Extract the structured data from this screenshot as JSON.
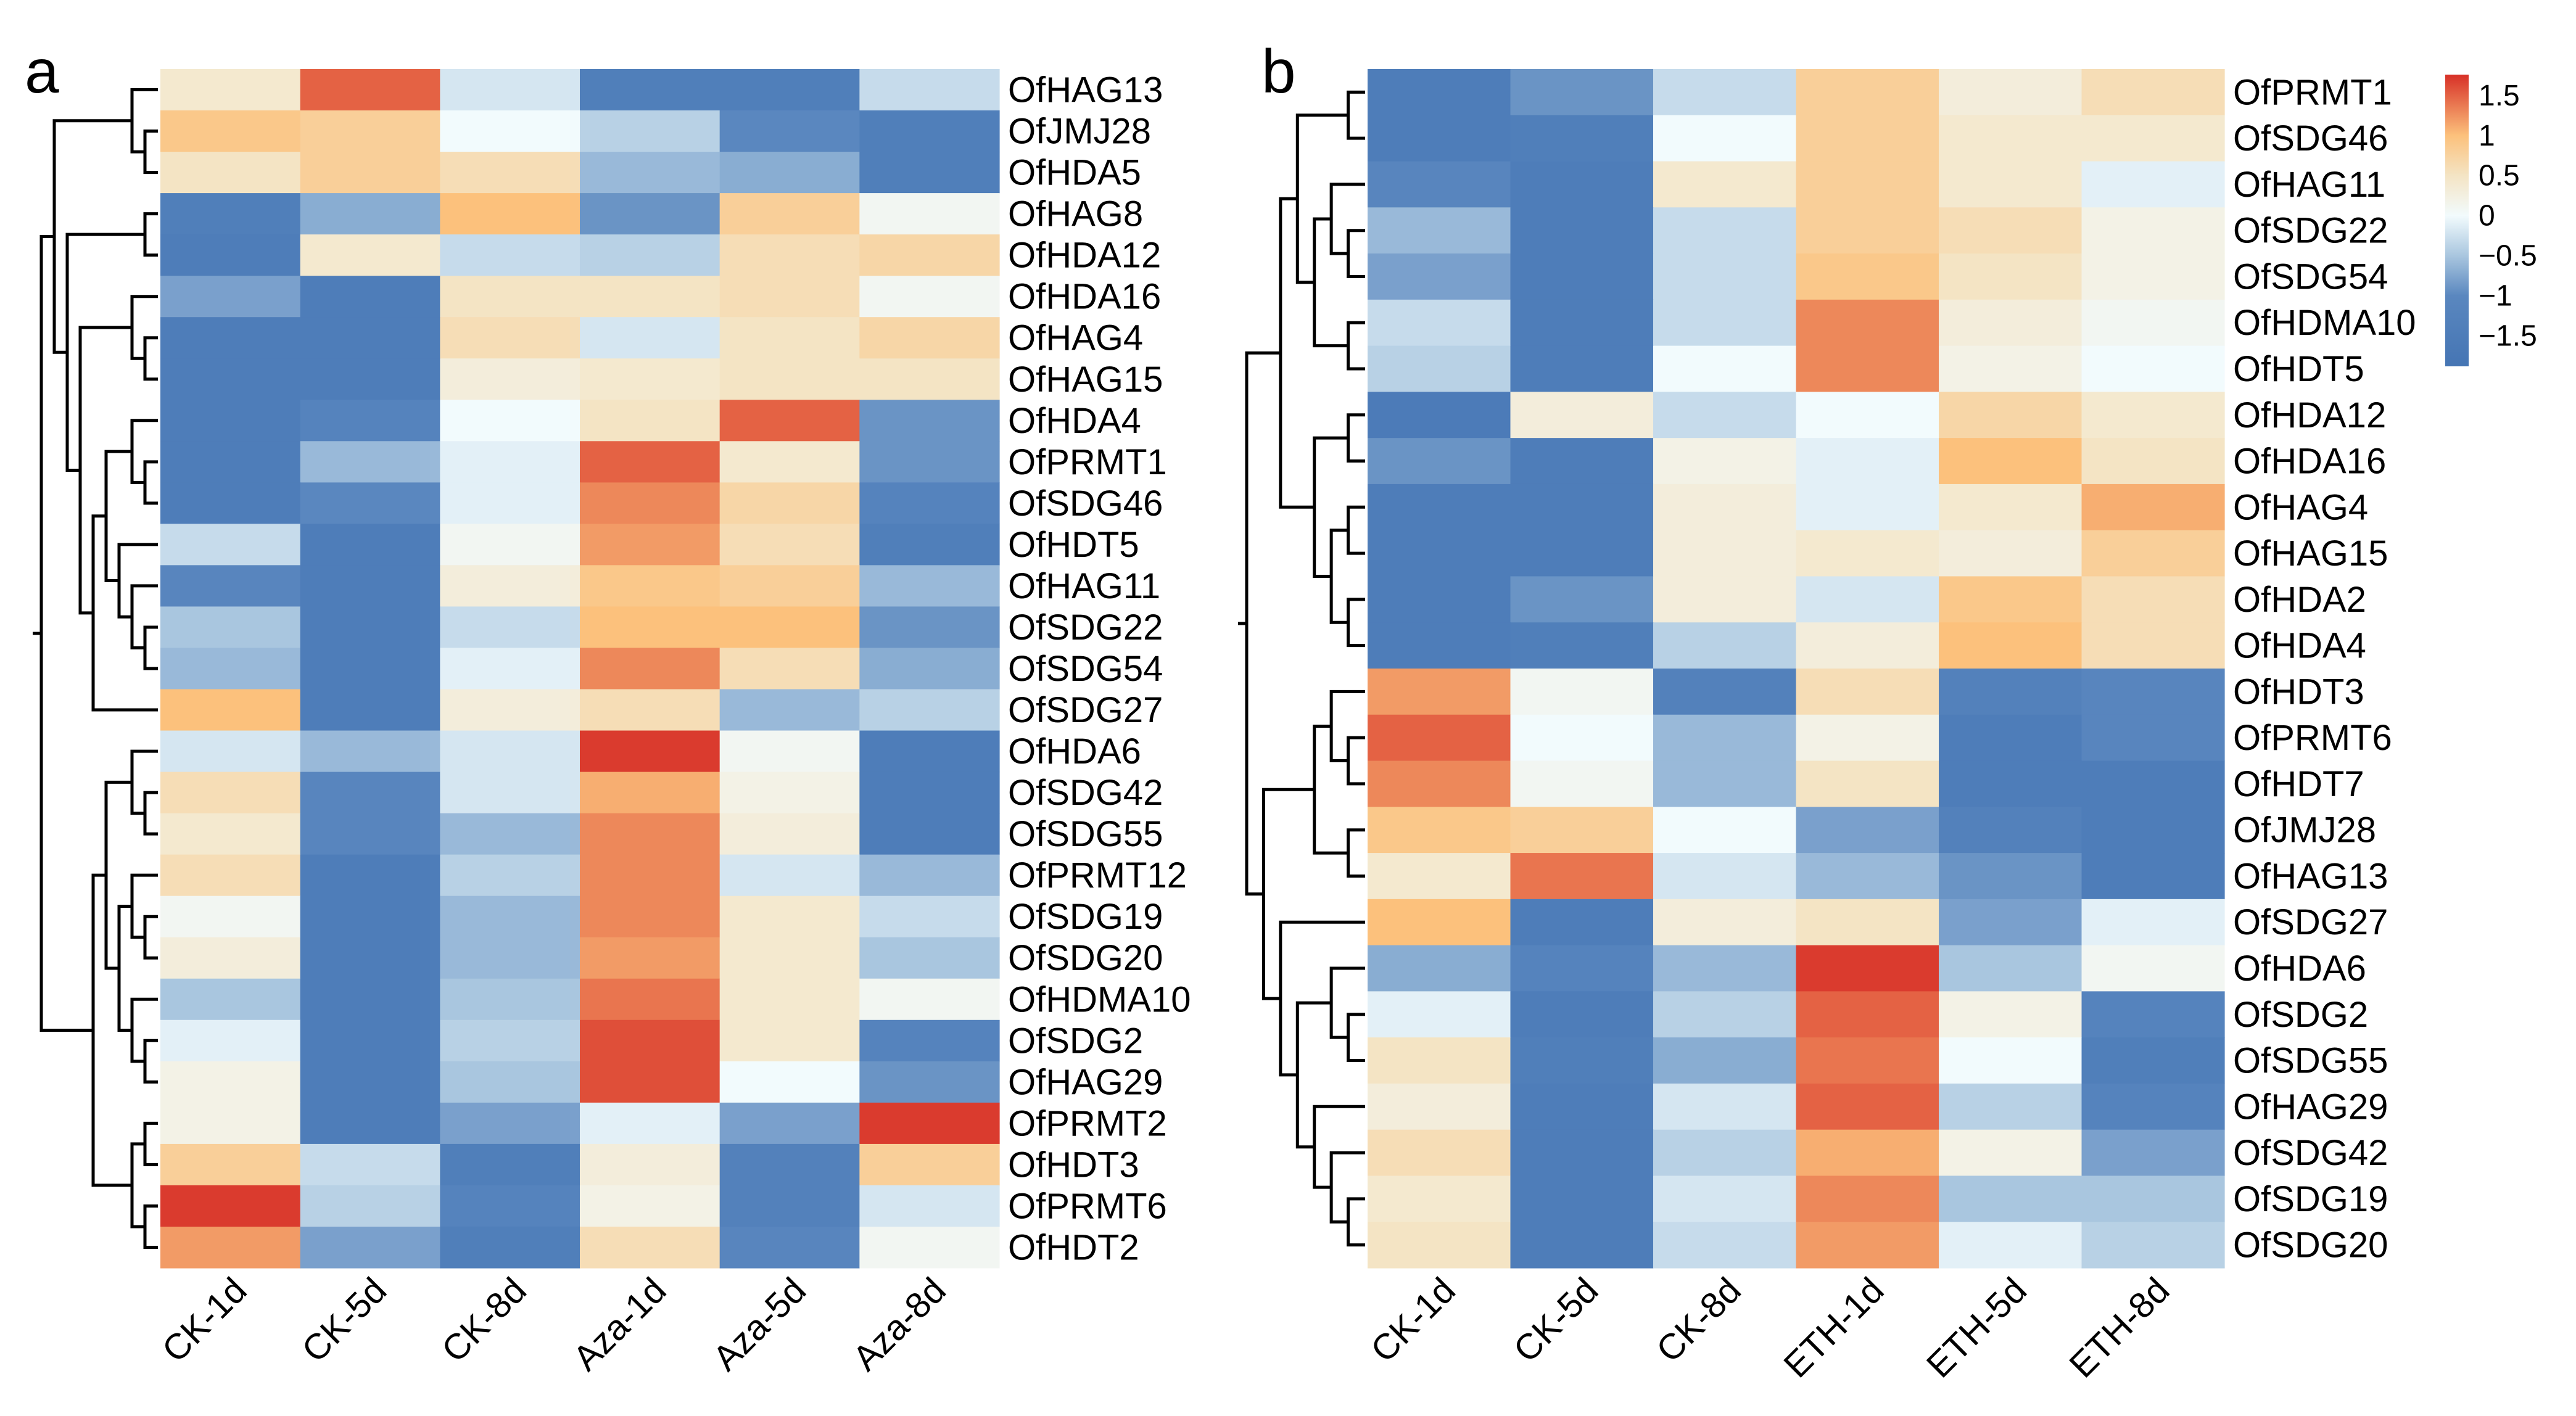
{
  "chart_data": [
    {
      "type": "heatmap",
      "panel_label": "a",
      "columns": [
        "CK-1d",
        "CK-5d",
        "CK-8d",
        "Aza-1d",
        "Aza-5d",
        "Aza-8d"
      ],
      "rows": [
        "OfHAG13",
        "OfJMJ28",
        "OfHDA5",
        "OfHAG8",
        "OfHDA12",
        "OfHDA16",
        "OfHAG4",
        "OfHAG15",
        "OfHDA4",
        "OfPRMT1",
        "OfSDG46",
        "OfHDT5",
        "OfHAG11",
        "OfSDG22",
        "OfSDG54",
        "OfSDG27",
        "OfHDA6",
        "OfSDG42",
        "OfSDG55",
        "OfPRMT12",
        "OfSDG19",
        "OfSDG20",
        "OfHDMA10",
        "OfSDG2",
        "OfHAG29",
        "OfPRMT2",
        "OfHDT3",
        "OfPRMT6",
        "OfHDT2"
      ],
      "values": [
        [
          0.4,
          1.5,
          -0.2,
          -1.4,
          -1.4,
          -0.3
        ],
        [
          0.9,
          0.8,
          0,
          -0.4,
          -1.0,
          -1.4
        ],
        [
          0.5,
          0.8,
          0.6,
          -0.6,
          -0.7,
          -1.4
        ],
        [
          -1.4,
          -0.7,
          1.0,
          -0.9,
          0.8,
          0.1
        ],
        [
          -1.5,
          0.4,
          -0.3,
          -0.4,
          0.6,
          0.7
        ],
        [
          -0.8,
          -1.5,
          0.5,
          0.5,
          0.6,
          0.1
        ],
        [
          -1.5,
          -1.5,
          0.6,
          -0.2,
          0.5,
          0.7
        ],
        [
          -1.5,
          -1.5,
          0.3,
          0.4,
          0.5,
          0.5
        ],
        [
          -1.5,
          -1.2,
          0,
          0.5,
          1.5,
          -0.9
        ],
        [
          -1.5,
          -0.6,
          -0.1,
          1.5,
          0.4,
          -0.9
        ],
        [
          -1.5,
          -1.0,
          -0.1,
          1.3,
          0.7,
          -1.2
        ],
        [
          -0.3,
          -1.5,
          0.1,
          1.2,
          0.6,
          -1.4
        ],
        [
          -1.1,
          -1.5,
          0.3,
          0.9,
          0.8,
          -0.6
        ],
        [
          -0.5,
          -1.5,
          -0.3,
          1.0,
          1.0,
          -0.9
        ],
        [
          -0.6,
          -1.5,
          -0.1,
          1.3,
          0.6,
          -0.7
        ],
        [
          1.0,
          -1.5,
          0.3,
          0.6,
          -0.6,
          -0.4
        ],
        [
          -0.2,
          -0.6,
          -0.2,
          1.7,
          0.1,
          -1.5
        ],
        [
          0.6,
          -1.1,
          -0.2,
          1.1,
          0.2,
          -1.5
        ],
        [
          0.4,
          -1.1,
          -0.6,
          1.3,
          0.3,
          -1.5
        ],
        [
          0.6,
          -1.5,
          -0.4,
          1.3,
          -0.2,
          -0.6
        ],
        [
          0.1,
          -1.5,
          -0.6,
          1.3,
          0.4,
          -0.3
        ],
        [
          0.3,
          -1.5,
          -0.6,
          1.2,
          0.4,
          -0.5
        ],
        [
          -0.5,
          -1.5,
          -0.5,
          1.4,
          0.4,
          0.1
        ],
        [
          -0.1,
          -1.5,
          -0.4,
          1.6,
          0.4,
          -1.2
        ],
        [
          0.2,
          -1.5,
          -0.5,
          1.6,
          0,
          -0.9
        ],
        [
          0.2,
          -1.5,
          -0.8,
          -0.1,
          -0.8,
          1.7
        ],
        [
          0.8,
          -0.3,
          -1.4,
          0.3,
          -1.3,
          0.8
        ],
        [
          1.7,
          -0.4,
          -1.2,
          0.2,
          -1.3,
          -0.2
        ],
        [
          1.2,
          -0.8,
          -1.4,
          0.6,
          -1.1,
          0.1
        ]
      ],
      "row_tree": [
        [
          [
            0,
            [
              1,
              2
            ]
          ],
          [
            [
              3,
              4
            ],
            [
              [
                5,
                [
                  6,
                  7
                ]
              ],
              [
                [
                  [
                    8,
                    [
                      9,
                      10
                    ]
                  ],
                  [
                    11,
                    [
                      12,
                      [
                        13,
                        14
                      ]
                    ]
                  ]
                ],
                15
              ]
            ]
          ]
        ],
        [
          [
            [
              16,
              [
                17,
                18
              ]
            ],
            [
              [
                19,
                [
                  20,
                  21
                ]
              ],
              [
                22,
                [
                  23,
                  24
                ]
              ]
            ]
          ],
          [
            [
              25,
              26
            ],
            [
              27,
              28
            ]
          ]
        ]
      ]
    },
    {
      "type": "heatmap",
      "panel_label": "b",
      "columns": [
        "CK-1d",
        "CK-5d",
        "CK-8d",
        "ETH-1d",
        "ETH-5d",
        "ETH-8d"
      ],
      "rows": [
        "OfPRMT1",
        "OfSDG46",
        "OfHAG11",
        "OfSDG22",
        "OfSDG54",
        "OfHDMA10",
        "OfHDT5",
        "OfHDA12",
        "OfHDA16",
        "OfHAG4",
        "OfHAG15",
        "OfHDA2",
        "OfHDA4",
        "OfHDT3",
        "OfPRMT6",
        "OfHDT7",
        "OfJMJ28",
        "OfHAG13",
        "OfSDG27",
        "OfHDA6",
        "OfSDG2",
        "OfSDG55",
        "OfHAG29",
        "OfSDG42",
        "OfSDG19",
        "OfSDG20"
      ],
      "values": [
        [
          -1.5,
          -0.9,
          -0.3,
          0.8,
          0.3,
          0.6
        ],
        [
          -1.5,
          -1.4,
          0,
          0.8,
          0.4,
          0.4
        ],
        [
          -1.1,
          -1.5,
          0.4,
          0.8,
          0.4,
          -0.1
        ],
        [
          -0.6,
          -1.5,
          -0.3,
          0.8,
          0.6,
          0.2
        ],
        [
          -0.8,
          -1.5,
          -0.3,
          0.9,
          0.5,
          0.2
        ],
        [
          -0.3,
          -1.5,
          -0.3,
          1.3,
          0.3,
          0.1
        ],
        [
          -0.4,
          -1.5,
          0,
          1.3,
          0.2,
          0
        ],
        [
          -1.6,
          0.3,
          -0.3,
          0,
          0.7,
          0.4
        ],
        [
          -0.9,
          -1.5,
          0.2,
          -0.1,
          1.0,
          0.5
        ],
        [
          -1.5,
          -1.5,
          0.3,
          -0.1,
          0.4,
          1.1
        ],
        [
          -1.5,
          -1.5,
          0.3,
          0.4,
          0.3,
          0.8
        ],
        [
          -1.5,
          -0.9,
          0.3,
          -0.2,
          0.9,
          0.6
        ],
        [
          -1.5,
          -1.4,
          -0.4,
          0.3,
          1.0,
          0.6
        ],
        [
          1.2,
          0.1,
          -1.3,
          0.6,
          -1.3,
          -1.1
        ],
        [
          1.5,
          0,
          -0.6,
          0.2,
          -1.5,
          -1.1
        ],
        [
          1.3,
          0.1,
          -0.6,
          0.5,
          -1.5,
          -1.5
        ],
        [
          0.9,
          0.8,
          0,
          -0.8,
          -1.3,
          -1.5
        ],
        [
          0.4,
          1.4,
          -0.2,
          -0.6,
          -0.9,
          -1.5
        ],
        [
          1.0,
          -1.5,
          0.3,
          0.5,
          -0.8,
          -0.1
        ],
        [
          -0.7,
          -1.2,
          -0.6,
          1.7,
          -0.5,
          0.1
        ],
        [
          -0.1,
          -1.5,
          -0.4,
          1.5,
          0.2,
          -1.2
        ],
        [
          0.5,
          -1.4,
          -0.7,
          1.4,
          0,
          -1.4
        ],
        [
          0.3,
          -1.5,
          -0.2,
          1.5,
          -0.4,
          -1.2
        ],
        [
          0.6,
          -1.5,
          -0.4,
          1.1,
          0.2,
          -0.8
        ],
        [
          0.4,
          -1.5,
          -0.2,
          1.3,
          -0.5,
          -0.5
        ],
        [
          0.5,
          -1.5,
          -0.3,
          1.2,
          -0.1,
          -0.4
        ]
      ],
      "row_tree": [
        [
          [
            [
              0,
              1
            ],
            [
              [
                2,
                [
                  3,
                  4
                ]
              ],
              [
                5,
                6
              ]
            ]
          ],
          [
            [
              7,
              8
            ],
            [
              [
                9,
                10
              ],
              [
                11,
                12
              ]
            ]
          ]
        ],
        [
          [
            [
              13,
              [
                14,
                15
              ]
            ],
            [
              16,
              17
            ]
          ],
          [
            18,
            [
              [
                19,
                [
                  20,
                  21
                ]
              ],
              [
                22,
                [
                  23,
                  [
                    24,
                    25
                  ]
                ]
              ]
            ]
          ]
        ]
      ]
    }
  ],
  "legend": {
    "ticks": [
      "1.5",
      "1",
      "0.5",
      "0",
      "−0.5",
      "−1",
      "−1.5"
    ],
    "tick_values": [
      1.5,
      1,
      0.5,
      0,
      -0.5,
      -1,
      -1.5
    ],
    "range": [
      -1.88,
      1.76
    ],
    "color_stops": [
      [
        -1.88,
        "#4575b4"
      ],
      [
        -1.0,
        "#5a87bf"
      ],
      [
        -0.5,
        "#a9c6df"
      ],
      [
        0,
        "#f2fbfd"
      ],
      [
        0.5,
        "#f4e4c4"
      ],
      [
        1.0,
        "#fcc17c"
      ],
      [
        1.76,
        "#d73027"
      ]
    ]
  }
}
